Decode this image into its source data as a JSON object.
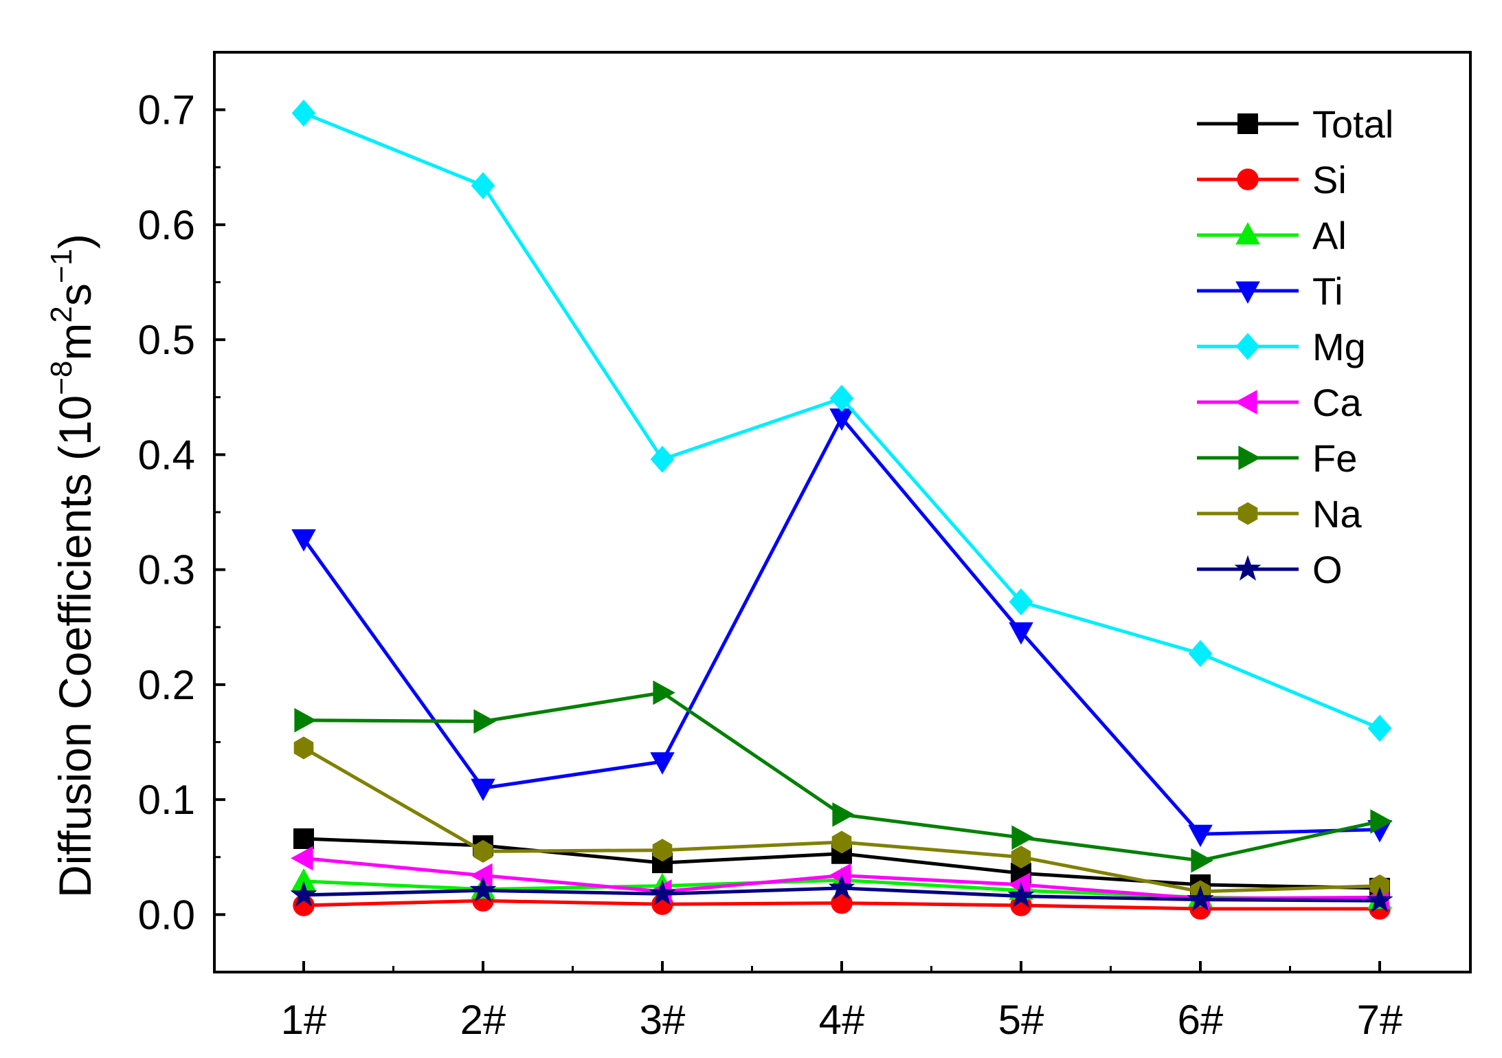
{
  "chart_data": {
    "type": "line",
    "ylabel": {
      "main": "Diffusion Coefficients (10",
      "exp1": "−8",
      "mid": "m",
      "exp2": "2",
      "s": "s",
      "exp3": "−1",
      "close": ")"
    },
    "xlabel": "",
    "categories": [
      "1#",
      "2#",
      "3#",
      "4#",
      "5#",
      "6#",
      "7#"
    ],
    "ylim": [
      -0.05,
      0.75
    ],
    "yticks": [
      "0.0",
      "0.1",
      "0.2",
      "0.3",
      "0.4",
      "0.5",
      "0.6",
      "0.7"
    ],
    "grid": false,
    "legend_position": "top-right",
    "series": [
      {
        "name": "Total",
        "color": "#000000",
        "marker": "square",
        "values": [
          0.066,
          0.06,
          0.045,
          0.053,
          0.036,
          0.026,
          0.023
        ]
      },
      {
        "name": "Si",
        "color": "#ff0000",
        "marker": "circle",
        "values": [
          0.008,
          0.012,
          0.009,
          0.01,
          0.008,
          0.005,
          0.005
        ]
      },
      {
        "name": "Al",
        "color": "#00ee00",
        "marker": "triangle-up",
        "values": [
          0.029,
          0.022,
          0.025,
          0.03,
          0.021,
          0.015,
          0.013
        ]
      },
      {
        "name": "Ti",
        "color": "#0000ff",
        "marker": "triangle-down",
        "values": [
          0.327,
          0.11,
          0.133,
          0.432,
          0.246,
          0.07,
          0.074
        ]
      },
      {
        "name": "Mg",
        "color": "#00eeff",
        "marker": "diamond",
        "values": [
          0.697,
          0.634,
          0.396,
          0.449,
          0.272,
          0.227,
          0.162
        ]
      },
      {
        "name": "Ca",
        "color": "#ff00ff",
        "marker": "triangle-left",
        "values": [
          0.049,
          0.034,
          0.02,
          0.034,
          0.026,
          0.014,
          0.015
        ]
      },
      {
        "name": "Fe",
        "color": "#008000",
        "marker": "triangle-right",
        "values": [
          0.169,
          0.168,
          0.193,
          0.087,
          0.067,
          0.047,
          0.081
        ]
      },
      {
        "name": "Na",
        "color": "#808000",
        "marker": "hexagon",
        "values": [
          0.145,
          0.055,
          0.056,
          0.063,
          0.05,
          0.02,
          0.025
        ]
      },
      {
        "name": "O",
        "color": "#000080",
        "marker": "star",
        "values": [
          0.017,
          0.021,
          0.018,
          0.023,
          0.016,
          0.013,
          0.012
        ]
      }
    ]
  }
}
